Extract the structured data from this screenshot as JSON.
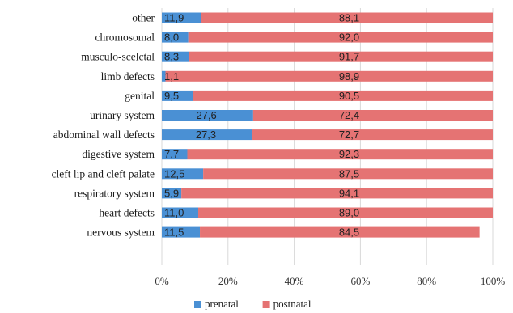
{
  "chart_data": {
    "type": "bar",
    "orientation": "horizontal",
    "stacked": true,
    "percent": true,
    "categories": [
      "other",
      "chromosomal",
      "musculo-scelctal",
      "limb defects",
      "genital",
      "urinary system",
      "abdominal wall defects",
      "digestive system",
      "cleft lip and cleft palate",
      "respiratory system",
      "heart defects",
      "nervous system"
    ],
    "series": [
      {
        "name": "prenatal",
        "color": "#4a90d4",
        "values": [
          11.9,
          8.0,
          8.3,
          1.1,
          9.5,
          27.6,
          27.3,
          7.7,
          12.5,
          5.9,
          11.0,
          11.5
        ],
        "labels": [
          "11,9",
          "8,0",
          "8,3",
          "1,1",
          "9,5",
          "27,6",
          "27,3",
          "7,7",
          "12,5",
          "5,9",
          "11,0",
          "11,5"
        ]
      },
      {
        "name": "postnatal",
        "color": "#e57373",
        "values": [
          88.1,
          92.0,
          91.7,
          98.9,
          90.5,
          72.4,
          72.7,
          92.3,
          87.5,
          94.1,
          89.0,
          84.5
        ],
        "labels": [
          "88,1",
          "92,0",
          "91,7",
          "98,9",
          "90,5",
          "72,4",
          "72,7",
          "92,3",
          "87,5",
          "94,1",
          "89,0",
          "84,5"
        ]
      }
    ],
    "xlim": [
      0,
      100
    ],
    "x_ticks": [
      "0%",
      "20%",
      "40%",
      "60%",
      "80%",
      "100%"
    ],
    "grid": true,
    "legend": "bottom",
    "title": "",
    "xlabel": "",
    "ylabel": ""
  }
}
